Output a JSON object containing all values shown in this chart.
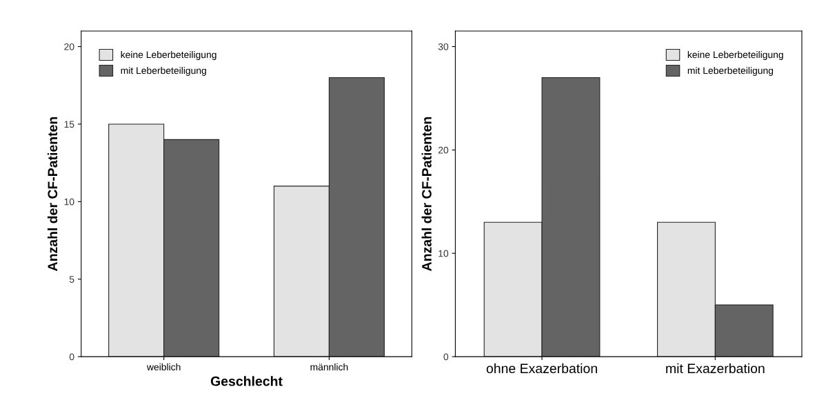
{
  "chart_data": [
    {
      "type": "bar",
      "xlabel": "Geschlecht",
      "ylabel": "Anzahl der CF-Patienten",
      "categories": [
        "weiblich",
        "männlich"
      ],
      "series": [
        {
          "name": "keine Leberbeteiligung",
          "color": "#e3e3e3",
          "values": [
            15,
            11
          ]
        },
        {
          "name": "mit Leberbeteiligung",
          "color": "#646464",
          "values": [
            14,
            18
          ]
        }
      ],
      "ylim": [
        0,
        21
      ],
      "yticks": [
        0,
        5,
        10,
        15,
        20
      ],
      "legend": "top left",
      "grid": false
    },
    {
      "type": "bar",
      "ylabel": "Anzahl der CF-Patienten",
      "categories": [
        "ohne Exazerbation",
        "mit Exazerbation"
      ],
      "series": [
        {
          "name": "keine Leberbeteiligung",
          "color": "#e3e3e3",
          "values": [
            13,
            13
          ]
        },
        {
          "name": "mit Leberbeteiligung",
          "color": "#646464",
          "values": [
            27,
            5
          ]
        }
      ],
      "ylim": [
        0,
        31.5
      ],
      "yticks": [
        0,
        10,
        20,
        30
      ],
      "legend": "top right",
      "grid": false
    }
  ]
}
